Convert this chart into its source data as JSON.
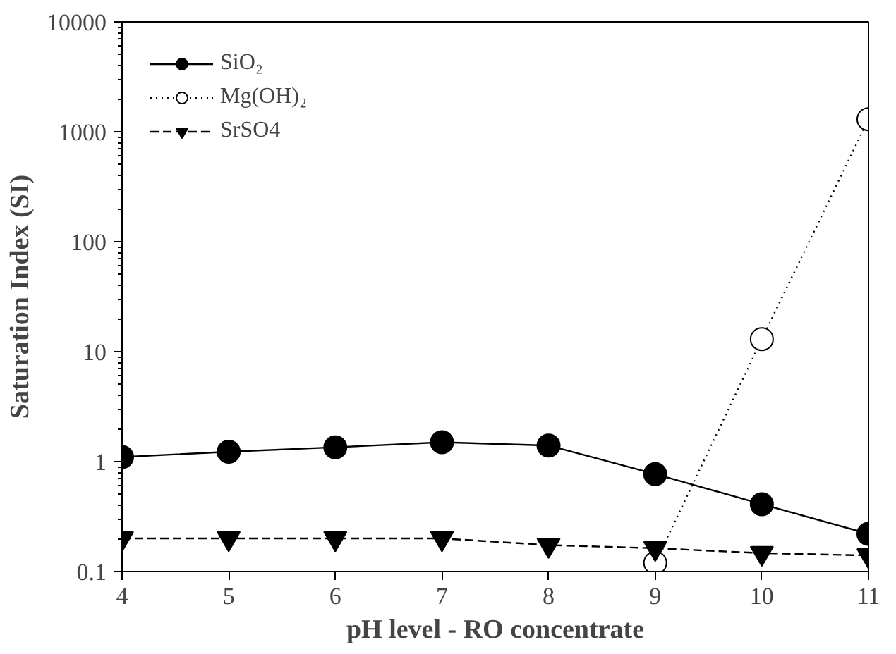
{
  "chart_data": {
    "type": "line",
    "xlabel": "pH level - RO concentrate",
    "ylabel": "Saturation Index (SI)",
    "x": [
      4,
      5,
      6,
      7,
      8,
      9,
      10,
      11
    ],
    "xlim": [
      4,
      11
    ],
    "xticks": [
      4,
      5,
      6,
      7,
      8,
      9,
      10,
      11
    ],
    "ylim": [
      0.1,
      10000
    ],
    "yticks": [
      0.1,
      1,
      10,
      100,
      1000,
      10000
    ],
    "log": "y",
    "grid": false,
    "legend": "top left",
    "series": [
      {
        "name": "SiO₂",
        "color": "#000000",
        "marker": "circle",
        "colors": [
          "#000000",
          "#000000",
          "#000000",
          "#000000",
          "#000000",
          "#000000",
          "#000000",
          "#000000"
        ],
        "line_style": "solid",
        "values": [
          1.1,
          1.23,
          1.35,
          1.5,
          1.4,
          0.77,
          0.41,
          0.22
        ]
      },
      {
        "name": "Mg(OH)₂",
        "color": "#000000",
        "marker": "circle",
        "colors": [
          "#ffffff",
          "#ffffff",
          "#ffffff",
          "#ffffff",
          "#ffffff",
          "#ffffff",
          "#ffffff",
          "#ffffff"
        ],
        "line_style": "dotted",
        "values": [
          null,
          null,
          null,
          null,
          null,
          0.12,
          13,
          1300
        ]
      },
      {
        "name": "SrSO4",
        "color": "#000000",
        "marker": "triangle",
        "colors": [
          "#000000",
          "#000000",
          "#000000",
          "#000000",
          "#000000",
          "#000000",
          "#000000",
          "#000000"
        ],
        "line_style": "dashed",
        "values": [
          0.2,
          0.2,
          0.2,
          0.2,
          0.174,
          0.163,
          0.147,
          0.14
        ]
      }
    ]
  }
}
